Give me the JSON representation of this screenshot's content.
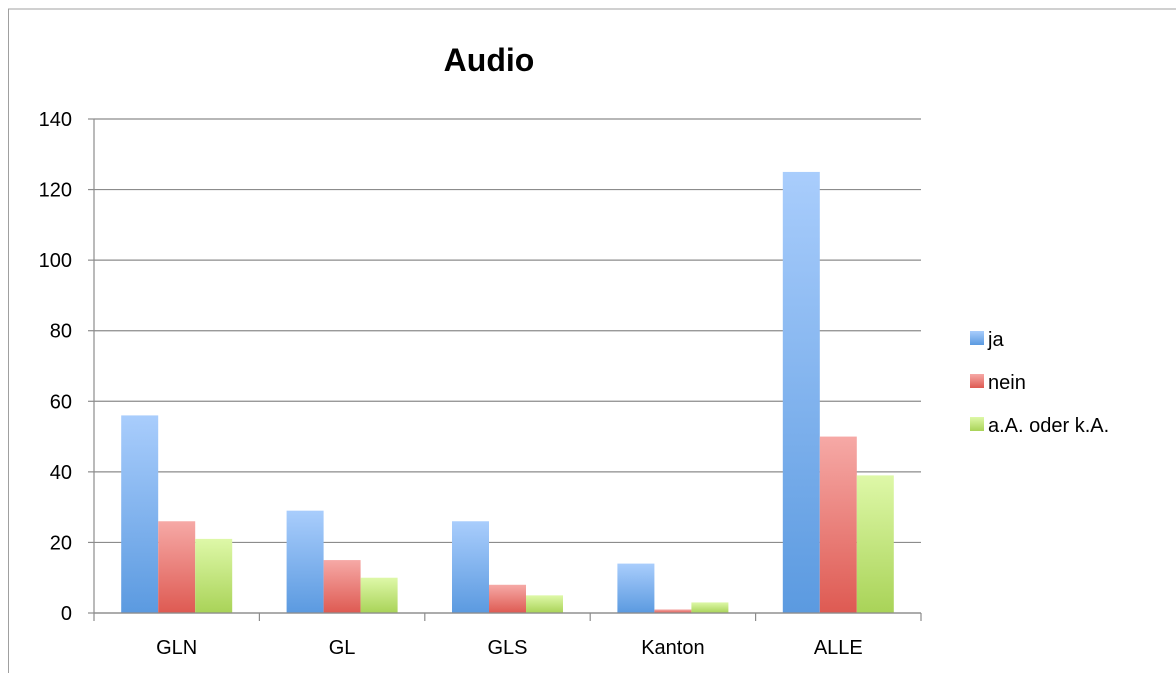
{
  "chart_data": {
    "type": "bar",
    "title": "Audio",
    "xlabel": "",
    "ylabel": "",
    "categories": [
      "GLN",
      "GL",
      "GLS",
      "Kanton",
      "ALLE"
    ],
    "series": [
      {
        "name": "ja",
        "values": [
          56,
          29,
          26,
          14,
          125
        ],
        "color": "#5b9bd5"
      },
      {
        "name": "nein",
        "values": [
          26,
          15,
          8,
          1,
          50
        ],
        "color": "#e0605a"
      },
      {
        "name": "a.A. oder k.A.",
        "values": [
          21,
          10,
          5,
          3,
          39
        ],
        "color": "#a9d05a"
      }
    ],
    "ylim": [
      0,
      140
    ],
    "yticks": [
      "0",
      "20",
      "40",
      "60",
      "80",
      "100",
      "120",
      "140"
    ],
    "grid": true,
    "legend_position": "right"
  },
  "colors": {
    "gradients": [
      [
        "#a9cdfc",
        "#5b9ae0"
      ],
      [
        "#f6a9a6",
        "#de5a52"
      ],
      [
        "#def8a8",
        "#a9d358"
      ]
    ]
  }
}
